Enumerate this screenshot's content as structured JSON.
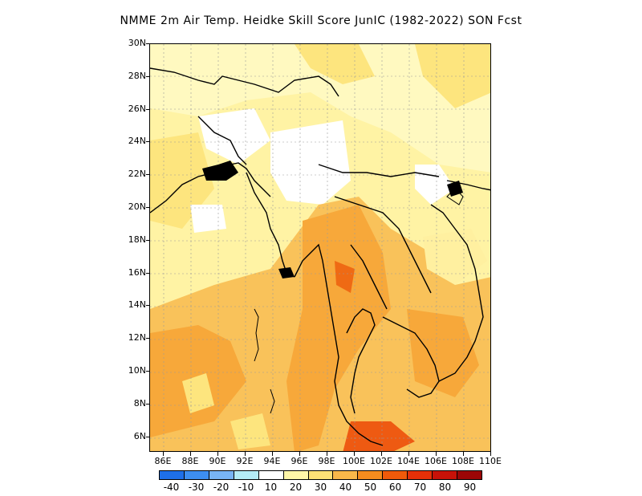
{
  "title": "NMME  2m Air Temp. Heidke Skill Score JunIC (1982-2022) SON Fcst",
  "lat_labels": [
    "30N",
    "28N",
    "26N",
    "24N",
    "22N",
    "20N",
    "18N",
    "16N",
    "14N",
    "12N",
    "10N",
    "8N",
    "6N"
  ],
  "lon_labels": [
    "86E",
    "88E",
    "90E",
    "92E",
    "94E",
    "96E",
    "98E",
    "100E",
    "102E",
    "104E",
    "106E",
    "108E",
    "110E"
  ],
  "colorbar": {
    "labels": [
      "-40",
      "-30",
      "-20",
      "-10",
      "10",
      "20",
      "30",
      "40",
      "50",
      "60",
      "70",
      "80",
      "90"
    ],
    "colors": [
      "#1e6fe8",
      "#3d8ef0",
      "#78b4f5",
      "#b4ecf6",
      "#ffffff",
      "#fff6a8",
      "#fde076",
      "#f9b84a",
      "#f58c1e",
      "#f05a0a",
      "#e53008",
      "#c81208",
      "#9c0606"
    ]
  },
  "map": {
    "land_color_default": "#fff2a0",
    "background_color": "#ffffff",
    "grid": true,
    "lon_range": [
      "85E",
      "110E"
    ],
    "lat_range": [
      "5N",
      "30N"
    ]
  }
}
